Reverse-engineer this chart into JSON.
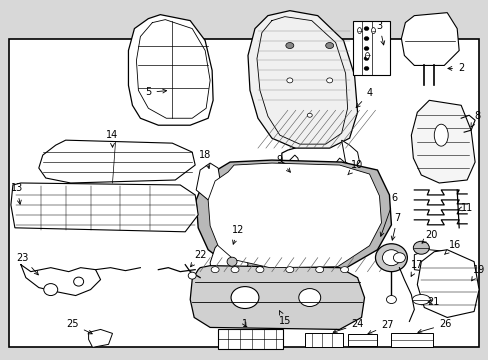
{
  "background_color": "#d8d8d8",
  "border_color": "#000000",
  "fig_width": 4.89,
  "fig_height": 3.6,
  "dpi": 100,
  "font_size": 7.0
}
